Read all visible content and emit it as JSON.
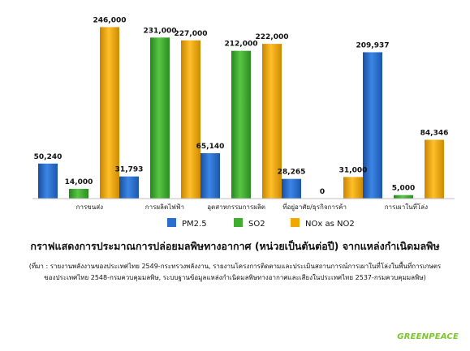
{
  "chart_data": {
    "type": "bar",
    "categories": [
      "การขนส่ง",
      "การผลิตไฟฟ้า",
      "อุตสาหกรรมการผลิต",
      "ที่อยู่อาศัย/ธุรกิจการค้า",
      "การเผาในที่โล่ง"
    ],
    "series": [
      {
        "name": "PM2.5",
        "color": "#2a6fcf",
        "values": [
          50240,
          31793,
          65140,
          28265,
          209937
        ],
        "labels": [
          "50,240",
          "31,793",
          "65,140",
          "28,265",
          "209,937"
        ]
      },
      {
        "name": "SO2",
        "color": "#3fae2e",
        "values": [
          14000,
          231000,
          212000,
          0,
          5000
        ],
        "labels": [
          "14,000",
          "231,000",
          "212,000",
          "0",
          "5,000"
        ]
      },
      {
        "name": "NOx as NO2",
        "color": "#f0a800",
        "values": [
          246000,
          227000,
          222000,
          31000,
          84346
        ],
        "labels": [
          "246,000",
          "227,000",
          "222,000",
          "31,000",
          "84,346"
        ]
      }
    ],
    "ylim": [
      0,
      250000
    ],
    "grid": false,
    "legend_position": "bottom",
    "title": "กราฟแสดงการประมาณการปล่อยมลพิษทางอากาศ (หน่วยเป็นตันต่อปี) จากแหล่งกำเนิดมลพิษ",
    "source_lines": [
      "(ที่มา : รายงานพลังงานของประเทศไทย 2549-กระทรวงพลังงาน, รายงานโครงการติดตามและประเมินสถานการณ์การเผาในที่โล่งในพื้นที่การเกษตร",
      "ของประเทศไทย 2548-กรมควบคุมมลพิษ, ระบบฐานข้อมูลแหล่งกำเนิดมลพิษทางอากาศและเสียงในประเทศไทย 2537-กรมควบคุมมลพิษ)"
    ]
  },
  "logo_text": "GREENPEACE"
}
